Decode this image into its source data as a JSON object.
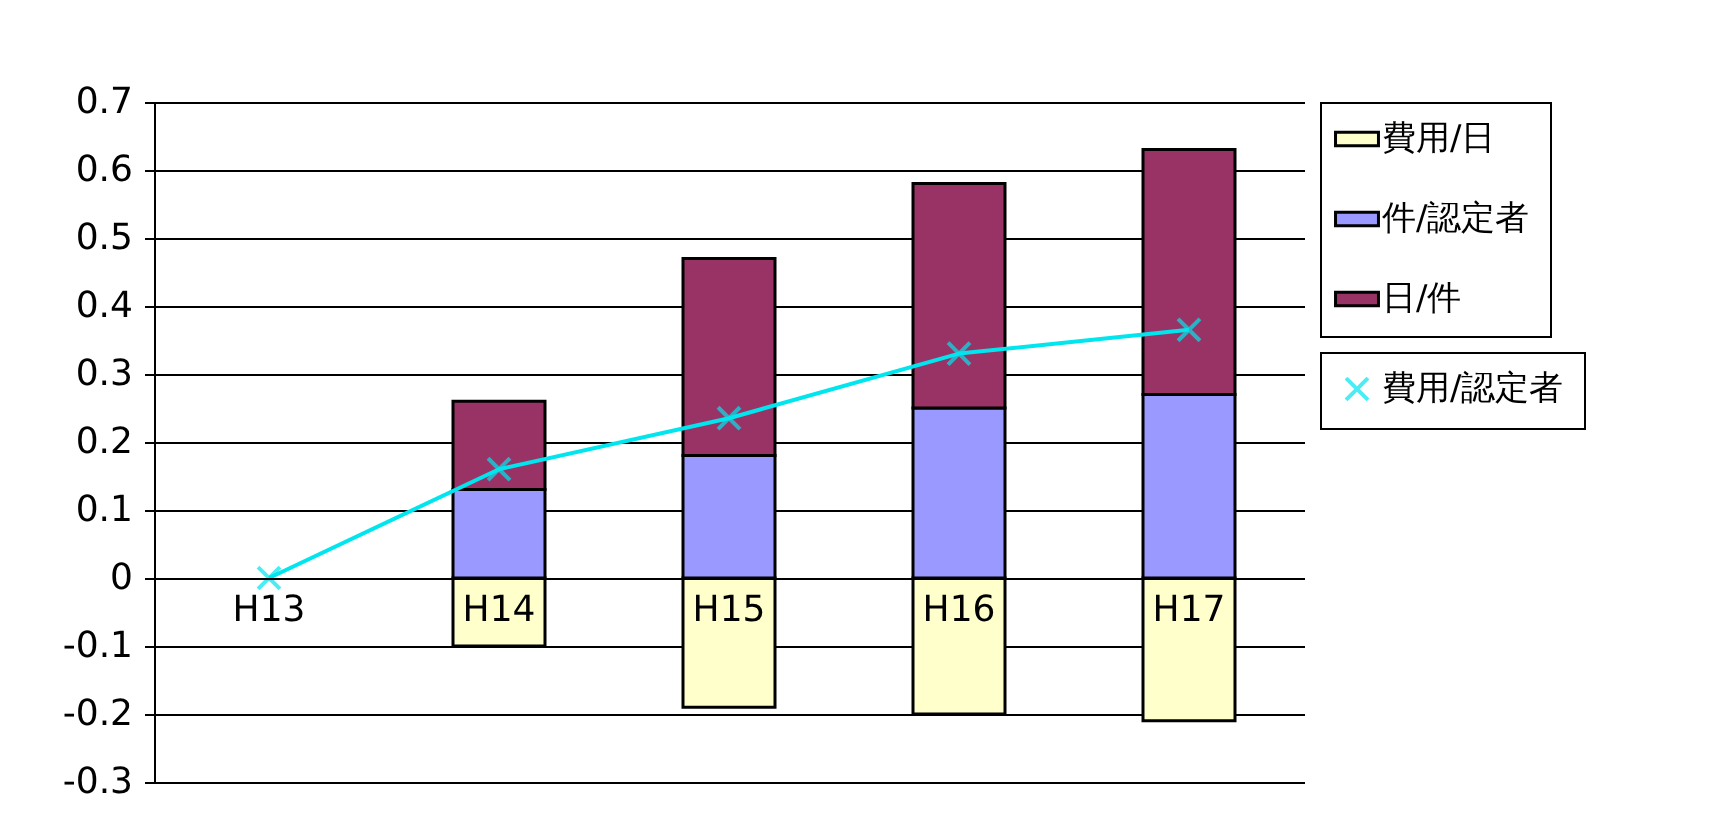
{
  "chart_data": {
    "type": "bar",
    "stacked": true,
    "categories": [
      "H13",
      "H14",
      "H15",
      "H16",
      "H17"
    ],
    "series": [
      {
        "name": "費用/日",
        "color": "#ffffcc",
        "values": [
          null,
          -0.1,
          -0.19,
          -0.2,
          -0.21
        ]
      },
      {
        "name": "件/認定者",
        "color": "#9999ff",
        "values": [
          null,
          0.13,
          0.18,
          0.25,
          0.27
        ]
      },
      {
        "name": "日/件",
        "color": "#993366",
        "values": [
          null,
          0.13,
          0.29,
          0.33,
          0.36
        ]
      },
      {
        "name": "費用/認定者",
        "type": "line",
        "color": "#00e5ee",
        "marker": "cross",
        "values": [
          0,
          0.16,
          0.235,
          0.33,
          0.365
        ]
      }
    ],
    "ylim": [
      -0.3,
      0.7
    ],
    "yticks": [
      -0.3,
      -0.2,
      -0.1,
      0,
      0.1,
      0.2,
      0.3,
      0.4,
      0.5,
      0.6,
      0.7
    ],
    "grid": "y",
    "legend": "right"
  }
}
